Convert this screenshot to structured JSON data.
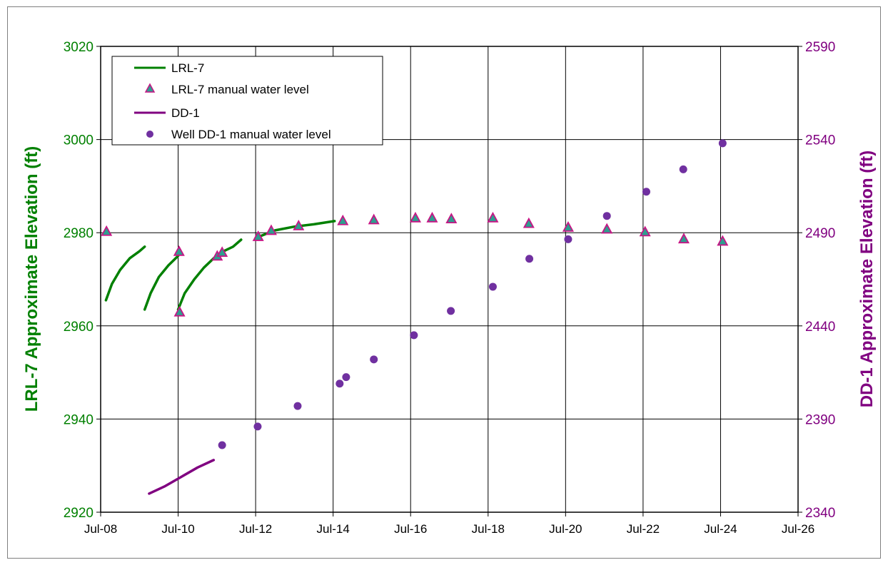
{
  "chart_data": {
    "type": "line",
    "x_axis": {
      "ticks": [
        "Jul-08",
        "Jul-10",
        "Jul-12",
        "Jul-14",
        "Jul-16",
        "Jul-18",
        "Jul-20",
        "Jul-22",
        "Jul-24",
        "Jul-26"
      ],
      "range": [
        "2008-07-01",
        "2026-07-01"
      ]
    },
    "y_left": {
      "label": "LRL-7 Approximate Elevation (ft)",
      "range": [
        2920,
        3020
      ],
      "ticks": [
        "2920",
        "2940",
        "2960",
        "2980",
        "3000",
        "3020"
      ],
      "color": "#008000"
    },
    "y_right": {
      "label": "DD-1 Approximate Elevation (ft)",
      "range": [
        2340,
        2590
      ],
      "ticks": [
        "2340",
        "2390",
        "2440",
        "2490",
        "2540",
        "2590"
      ],
      "color": "#800080"
    },
    "grid": true,
    "legend_position": "top-left",
    "series": [
      {
        "name": "LRL-7",
        "kind": "line",
        "axis": "left",
        "color": "#008000",
        "segments": [
          [
            [
              "2008-08-20",
              2965.5
            ],
            [
              "2008-10-15",
              2969
            ],
            [
              "2009-01-01",
              2972
            ],
            [
              "2009-04-01",
              2974.5
            ],
            [
              "2009-07-01",
              2976
            ],
            [
              "2009-08-20",
              2977
            ]
          ],
          [
            [
              "2009-08-20",
              2963.5
            ],
            [
              "2009-10-15",
              2967
            ],
            [
              "2010-01-01",
              2970.5
            ],
            [
              "2010-04-01",
              2973
            ],
            [
              "2010-07-01",
              2975
            ]
          ],
          [
            [
              "2010-07-01",
              2963.5
            ],
            [
              "2010-09-01",
              2967
            ],
            [
              "2010-12-01",
              2970
            ],
            [
              "2011-03-01",
              2972.5
            ],
            [
              "2011-06-01",
              2974.5
            ],
            [
              "2011-09-01",
              2976
            ],
            [
              "2011-12-01",
              2977
            ],
            [
              "2012-02-15",
              2978.5
            ]
          ],
          [
            [
              "2012-07-15",
              2979
            ],
            [
              "2013-01-01",
              2980.5
            ],
            [
              "2013-07-01",
              2981.3
            ],
            [
              "2014-01-01",
              2981.8
            ],
            [
              "2014-07-15",
              2982.5
            ]
          ]
        ]
      },
      {
        "name": "LRL-7 manual water level",
        "kind": "scatter",
        "marker": "triangle",
        "axis": "left",
        "color": "#2e9e8f",
        "edge_color": "#c71585",
        "points": [
          [
            "2008-08-25",
            2980.3
          ],
          [
            "2010-07-10",
            2976
          ],
          [
            "2010-07-15",
            2963
          ],
          [
            "2011-07-05",
            2975
          ],
          [
            "2011-08-20",
            2975.8
          ],
          [
            "2012-07-25",
            2979.2
          ],
          [
            "2012-11-25",
            2980.5
          ],
          [
            "2013-08-10",
            2981.5
          ],
          [
            "2014-10-01",
            2982.6
          ],
          [
            "2015-07-20",
            2982.8
          ],
          [
            "2016-08-15",
            2983.2
          ],
          [
            "2017-01-20",
            2983.2
          ],
          [
            "2017-07-20",
            2983
          ],
          [
            "2018-08-15",
            2983.2
          ],
          [
            "2019-07-20",
            2982
          ],
          [
            "2020-07-25",
            2981.2
          ],
          [
            "2021-07-25",
            2980.8
          ],
          [
            "2022-07-20",
            2980.2
          ],
          [
            "2023-07-20",
            2978.7
          ],
          [
            "2024-07-20",
            2978.2
          ]
        ]
      },
      {
        "name": "DD-1",
        "kind": "line",
        "axis": "right",
        "color": "#800080",
        "segments": [
          [
            [
              "2009-10-01",
              2350
            ],
            [
              "2010-03-01",
              2354
            ],
            [
              "2010-08-01",
              2359
            ],
            [
              "2011-01-01",
              2364
            ],
            [
              "2011-06-01",
              2368
            ]
          ]
        ]
      },
      {
        "name": "Well DD-1 manual water level",
        "kind": "scatter",
        "marker": "circle",
        "axis": "right",
        "color": "#7030a0",
        "points": [
          [
            "2011-08-20",
            2376
          ],
          [
            "2012-07-20",
            2386
          ],
          [
            "2013-08-01",
            2397
          ],
          [
            "2014-09-01",
            2409
          ],
          [
            "2014-11-01",
            2412.5
          ],
          [
            "2015-07-20",
            2422
          ],
          [
            "2016-08-01",
            2435
          ],
          [
            "2017-07-15",
            2448
          ],
          [
            "2018-08-15",
            2461
          ],
          [
            "2019-07-25",
            2476
          ],
          [
            "2020-07-25",
            2486.5
          ],
          [
            "2021-07-25",
            2499
          ],
          [
            "2022-08-01",
            2512
          ],
          [
            "2023-07-15",
            2524
          ],
          [
            "2024-07-20",
            2538
          ]
        ]
      }
    ]
  }
}
